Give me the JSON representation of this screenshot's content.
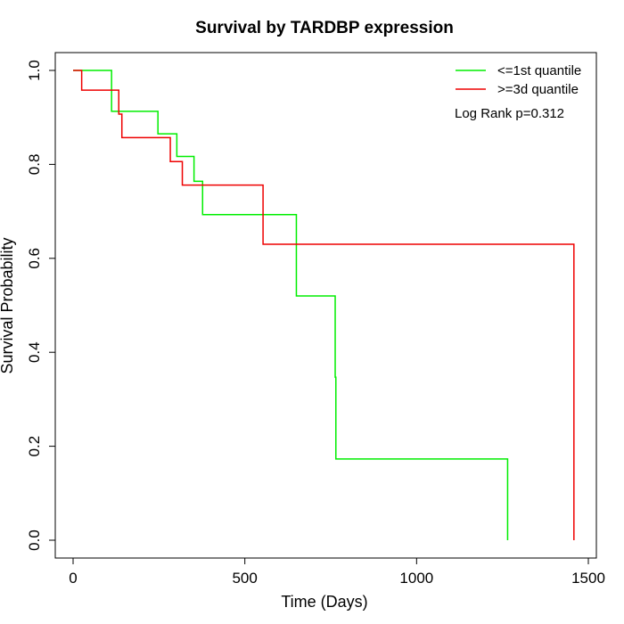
{
  "chart_data": {
    "type": "line",
    "title": "Survival by TARDBP expression",
    "xlabel": "Time (Days)",
    "ylabel": "Survival Probability",
    "xlim": [
      0,
      1500
    ],
    "ylim": [
      0,
      1
    ],
    "x_ticks": [
      0,
      500,
      1000,
      1500
    ],
    "y_ticks": [
      0.0,
      0.2,
      0.4,
      0.6,
      0.8,
      1.0
    ],
    "x_tick_labels": [
      "0",
      "500",
      "1000",
      "1500"
    ],
    "y_tick_labels": [
      "0.0",
      "0.2",
      "0.4",
      "0.6",
      "0.8",
      "1.0"
    ],
    "grid": false,
    "legend_position": "top-right",
    "annotation": "Log Rank p=0.312",
    "series": [
      {
        "name": "<=1st quantile",
        "color": "#00ee00",
        "steps": [
          [
            0,
            1.0
          ],
          [
            112,
            0.913
          ],
          [
            247,
            0.865
          ],
          [
            302,
            0.817
          ],
          [
            352,
            0.764
          ],
          [
            377,
            0.693
          ],
          [
            650,
            0.52
          ],
          [
            763,
            0.347
          ],
          [
            765,
            0.173
          ],
          [
            1265,
            0.0
          ]
        ]
      },
      {
        "name": ">=3d quantile",
        "color": "#ee0000",
        "steps": [
          [
            0,
            1.0
          ],
          [
            25,
            0.958
          ],
          [
            133,
            0.907
          ],
          [
            142,
            0.857
          ],
          [
            283,
            0.806
          ],
          [
            318,
            0.756
          ],
          [
            553,
            0.63
          ],
          [
            1458,
            0.0
          ]
        ]
      }
    ]
  }
}
